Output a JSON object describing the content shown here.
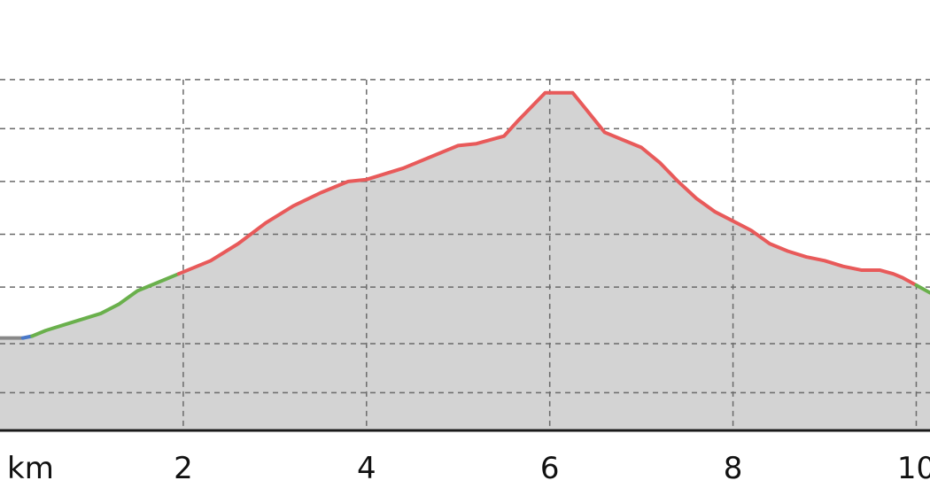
{
  "chart_data": {
    "type": "area",
    "title": "",
    "xlabel": "",
    "ylabel": "",
    "unit_label": "km",
    "xlim": [
      0,
      10.15
    ],
    "ylim": [
      0,
      100
    ],
    "x_ticks": [
      2,
      4,
      6,
      8,
      10
    ],
    "x_tick_labels": [
      "2",
      "4",
      "6",
      "8",
      "10"
    ],
    "y_gridlines": [
      10,
      23,
      38,
      52,
      66,
      80,
      93
    ],
    "x_gridlines": [
      2,
      4,
      6,
      8,
      10
    ],
    "grid": true,
    "legend": "none",
    "fill_color": "#d3d3d3",
    "slope_colors": {
      "flat": "#888888",
      "gentle": "#4a78c8",
      "moderate": "#6ab04c",
      "steep": "#e85a5a"
    },
    "series": [
      {
        "x": [
          0,
          0.25,
          0.35,
          0.5,
          0.7,
          0.9,
          1.1,
          1.3,
          1.5,
          1.7,
          1.95,
          2.3,
          2.6,
          2.9,
          3.2,
          3.5,
          3.8,
          4.0,
          4.4,
          4.8,
          5.0,
          5.2,
          5.5,
          5.65,
          5.95,
          6.25,
          6.4,
          6.6,
          6.8,
          7.0,
          7.2,
          7.4,
          7.6,
          7.8,
          8.0,
          8.2,
          8.4,
          8.6,
          8.8,
          9.0,
          9.2,
          9.4,
          9.6,
          9.75,
          9.85,
          10.0,
          10.15
        ],
        "y": [
          24.5,
          24.5,
          25.0,
          26.5,
          28.0,
          29.5,
          31.0,
          33.5,
          37.0,
          39.0,
          41.5,
          45.0,
          49.5,
          55.0,
          59.5,
          63.0,
          66.0,
          66.5,
          69.5,
          73.5,
          75.5,
          76.0,
          78.0,
          82.0,
          89.5,
          89.5,
          85.0,
          79.0,
          77.0,
          75.0,
          71.0,
          66.0,
          61.5,
          58.0,
          55.5,
          53.0,
          49.5,
          47.5,
          46.0,
          45.0,
          43.5,
          42.5,
          42.5,
          41.5,
          40.5,
          38.5,
          36.5
        ],
        "slope": [
          "flat",
          "gentle",
          "moderate",
          "moderate",
          "moderate",
          "moderate",
          "moderate",
          "moderate",
          "moderate",
          "moderate",
          "steep",
          "steep",
          "steep",
          "steep",
          "steep",
          "steep",
          "steep",
          "steep",
          "steep",
          "steep",
          "steep",
          "steep",
          "steep",
          "steep",
          "steep",
          "steep",
          "steep",
          "steep",
          "steep",
          "steep",
          "steep",
          "steep",
          "steep",
          "steep",
          "steep",
          "steep",
          "steep",
          "steep",
          "steep",
          "steep",
          "steep",
          "steep",
          "steep",
          "steep",
          "steep",
          "moderate"
        ]
      }
    ]
  }
}
